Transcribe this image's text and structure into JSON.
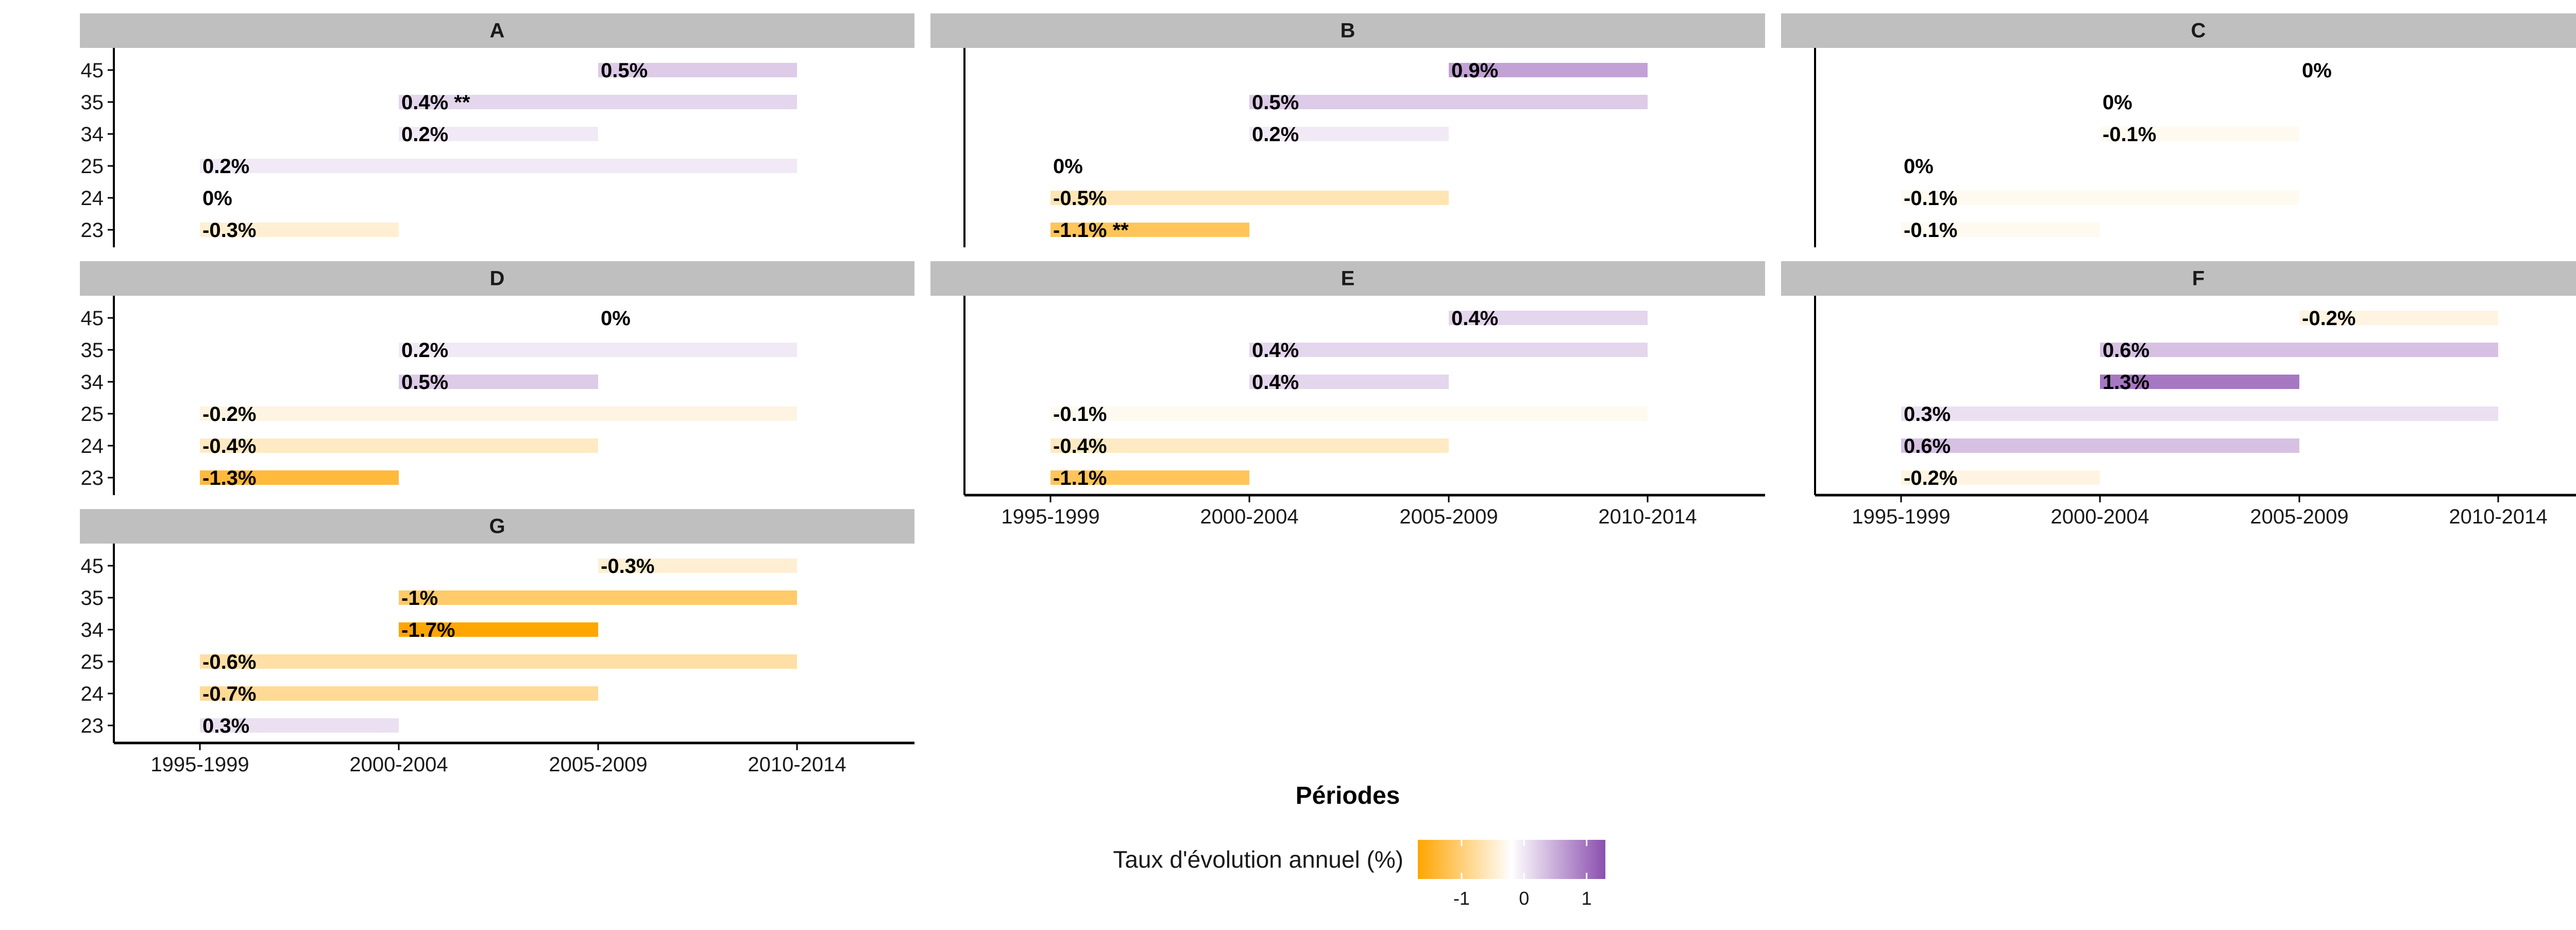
{
  "chart_data": {
    "type": "bar",
    "subtype": "faceted horizontal range bars (period start to 2010-2014), colored by annual growth rate",
    "x_axis": {
      "title": "Périodes",
      "ticks": [
        "1995-1999",
        "2000-2004",
        "2005-2009",
        "2010-2014"
      ]
    },
    "y_axis": {
      "title": "",
      "categories": [
        "45",
        "35",
        "34",
        "25",
        "24",
        "23"
      ]
    },
    "legend": {
      "title": "Taux d'évolution annuel (%)",
      "ticks": [
        "-1",
        "0",
        "1"
      ],
      "colors": {
        "low": "#ffa500",
        "mid": "#ffffff",
        "high": "#8b4faf"
      },
      "position": "bottom"
    },
    "colors": {
      "strip": "#bfbfbf",
      "axis": "#000000"
    },
    "panels": [
      {
        "name": "A",
        "bars": [
          {
            "y": "45",
            "start": "2005-2009",
            "end": "2010-2014",
            "label": "0.5%",
            "rate": 0.5
          },
          {
            "y": "35",
            "start": "2000-2004",
            "end": "2010-2014",
            "label": "0.4% **",
            "rate": 0.4
          },
          {
            "y": "34",
            "start": "2000-2004",
            "end": "2005-2009",
            "label": "0.2%",
            "rate": 0.2
          },
          {
            "y": "25",
            "start": "1995-1999",
            "end": "2010-2014",
            "label": "0.2%",
            "rate": 0.2
          },
          {
            "y": "24",
            "start": "1995-1999",
            "end": "2005-2009",
            "label": "0%",
            "rate": 0
          },
          {
            "y": "23",
            "start": "1995-1999",
            "end": "2000-2004",
            "label": "-0.3%",
            "rate": -0.3
          }
        ]
      },
      {
        "name": "B",
        "bars": [
          {
            "y": "45",
            "start": "2005-2009",
            "end": "2010-2014",
            "label": "0.9%",
            "rate": 0.9
          },
          {
            "y": "35",
            "start": "2000-2004",
            "end": "2010-2014",
            "label": "0.5%",
            "rate": 0.5
          },
          {
            "y": "34",
            "start": "2000-2004",
            "end": "2005-2009",
            "label": "0.2%",
            "rate": 0.2
          },
          {
            "y": "25",
            "start": "1995-1999",
            "end": "2010-2014",
            "label": "0%",
            "rate": 0
          },
          {
            "y": "24",
            "start": "1995-1999",
            "end": "2005-2009",
            "label": "-0.5%",
            "rate": -0.5
          },
          {
            "y": "23",
            "start": "1995-1999",
            "end": "2000-2004",
            "label": "-1.1% **",
            "rate": -1.1
          }
        ]
      },
      {
        "name": "C",
        "bars": [
          {
            "y": "45",
            "start": "2005-2009",
            "end": "2010-2014",
            "label": "0%",
            "rate": 0
          },
          {
            "y": "35",
            "start": "2000-2004",
            "end": "2010-2014",
            "label": "0%",
            "rate": 0
          },
          {
            "y": "34",
            "start": "2000-2004",
            "end": "2005-2009",
            "label": "-0.1%",
            "rate": -0.1
          },
          {
            "y": "25",
            "start": "1995-1999",
            "end": "2010-2014",
            "label": "0%",
            "rate": 0
          },
          {
            "y": "24",
            "start": "1995-1999",
            "end": "2005-2009",
            "label": "-0.1%",
            "rate": -0.1
          },
          {
            "y": "23",
            "start": "1995-1999",
            "end": "2000-2004",
            "label": "-0.1%",
            "rate": -0.1
          }
        ]
      },
      {
        "name": "D",
        "bars": [
          {
            "y": "45",
            "start": "2005-2009",
            "end": "2010-2014",
            "label": "0%",
            "rate": 0
          },
          {
            "y": "35",
            "start": "2000-2004",
            "end": "2010-2014",
            "label": "0.2%",
            "rate": 0.2
          },
          {
            "y": "34",
            "start": "2000-2004",
            "end": "2005-2009",
            "label": "0.5%",
            "rate": 0.5
          },
          {
            "y": "25",
            "start": "1995-1999",
            "end": "2010-2014",
            "label": "-0.2%",
            "rate": -0.2
          },
          {
            "y": "24",
            "start": "1995-1999",
            "end": "2005-2009",
            "label": "-0.4%",
            "rate": -0.4
          },
          {
            "y": "23",
            "start": "1995-1999",
            "end": "2000-2004",
            "label": "-1.3%",
            "rate": -1.3
          }
        ]
      },
      {
        "name": "E",
        "bars": [
          {
            "y": "45",
            "start": "2005-2009",
            "end": "2010-2014",
            "label": "0.4%",
            "rate": 0.4
          },
          {
            "y": "35",
            "start": "2000-2004",
            "end": "2010-2014",
            "label": "0.4%",
            "rate": 0.4
          },
          {
            "y": "34",
            "start": "2000-2004",
            "end": "2005-2009",
            "label": "0.4%",
            "rate": 0.4
          },
          {
            "y": "25",
            "start": "1995-1999",
            "end": "2010-2014",
            "label": "-0.1%",
            "rate": -0.1
          },
          {
            "y": "24",
            "start": "1995-1999",
            "end": "2005-2009",
            "label": "-0.4%",
            "rate": -0.4
          },
          {
            "y": "23",
            "start": "1995-1999",
            "end": "2000-2004",
            "label": "-1.1%",
            "rate": -1.1
          }
        ]
      },
      {
        "name": "F",
        "bars": [
          {
            "y": "45",
            "start": "2005-2009",
            "end": "2010-2014",
            "label": "-0.2%",
            "rate": -0.2
          },
          {
            "y": "35",
            "start": "2000-2004",
            "end": "2010-2014",
            "label": "0.6%",
            "rate": 0.6
          },
          {
            "y": "34",
            "start": "2000-2004",
            "end": "2005-2009",
            "label": "1.3%",
            "rate": 1.3
          },
          {
            "y": "25",
            "start": "1995-1999",
            "end": "2010-2014",
            "label": "0.3%",
            "rate": 0.3
          },
          {
            "y": "24",
            "start": "1995-1999",
            "end": "2005-2009",
            "label": "0.6%",
            "rate": 0.6
          },
          {
            "y": "23",
            "start": "1995-1999",
            "end": "2000-2004",
            "label": "-0.2%",
            "rate": -0.2
          }
        ]
      },
      {
        "name": "G",
        "bars": [
          {
            "y": "45",
            "start": "2005-2009",
            "end": "2010-2014",
            "label": "-0.3%",
            "rate": -0.3
          },
          {
            "y": "35",
            "start": "2000-2004",
            "end": "2010-2014",
            "label": "-1%",
            "rate": -1
          },
          {
            "y": "34",
            "start": "2000-2004",
            "end": "2005-2009",
            "label": "-1.7%",
            "rate": -1.7
          },
          {
            "y": "25",
            "start": "1995-1999",
            "end": "2010-2014",
            "label": "-0.6%",
            "rate": -0.6
          },
          {
            "y": "24",
            "start": "1995-1999",
            "end": "2005-2009",
            "label": "-0.7%",
            "rate": -0.7
          },
          {
            "y": "23",
            "start": "1995-1999",
            "end": "2000-2004",
            "label": "0.3%",
            "rate": 0.3
          }
        ]
      }
    ]
  }
}
